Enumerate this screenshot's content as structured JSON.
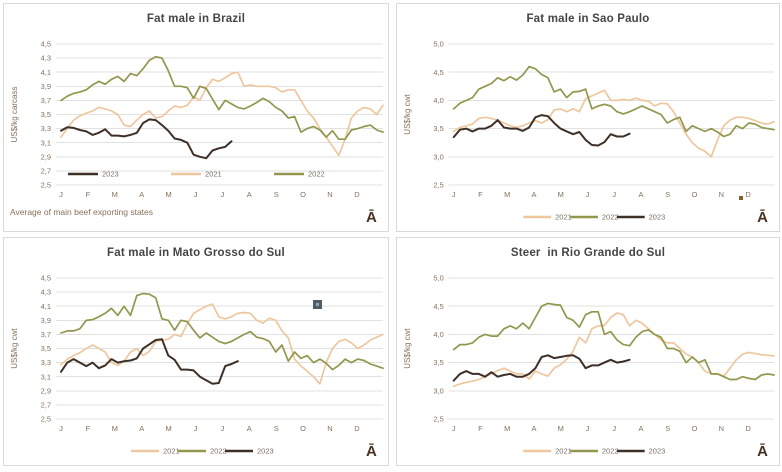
{
  "style": {
    "background": "#ffffff",
    "panel_border": "#d9d9d9",
    "grid_color": "#e1e1e1",
    "axis_text_color": "#87705a",
    "title_color": "#454545",
    "legend_text_color": "#7b6f64",
    "footnote_color": "#87705a",
    "logo_color": "#4a3120",
    "series_colors": {
      "2021": "#eec79e",
      "2022": "#91974d",
      "2023": "#3e3027"
    },
    "stray_marker_slate": {
      "outer": "#4e5d6a",
      "inner": "#98a7ae"
    },
    "stray_marker_brown": {
      "fill": "#8a5a33"
    }
  },
  "logo_glyph": "Ā",
  "chart_data": [
    {
      "type": "line",
      "title": "Fat male in Brazil",
      "ylabel": "US$/kg carcass",
      "xlabel": "",
      "ylim": [
        2.5,
        4.5
      ],
      "ytick_step": 0.2,
      "ytick_labels": [
        "2,5",
        "2,7",
        "2,9",
        "3,1",
        "3,3",
        "3,5",
        "3,7",
        "3,9",
        "4,1",
        "4,3",
        "4,5"
      ],
      "x_categories": [
        "J",
        "F",
        "M",
        "A",
        "M",
        "J",
        "J",
        "A",
        "S",
        "O",
        "N",
        "D"
      ],
      "grid": "horizontal",
      "legend_position": "inside",
      "legend_order": [
        "2023",
        "2021",
        "2022"
      ],
      "footnote": "Average of main beef exporting states",
      "series": [
        {
          "name": "2021",
          "values": [
            3.18,
            3.3,
            3.42,
            3.48,
            3.52,
            3.55,
            3.6,
            3.58,
            3.55,
            3.5,
            3.35,
            3.33,
            3.42,
            3.5,
            3.55,
            3.45,
            3.47,
            3.55,
            3.62,
            3.6,
            3.63,
            3.75,
            3.7,
            3.88,
            4.0,
            3.97,
            4.02,
            4.08,
            4.1,
            3.9,
            3.92,
            3.9,
            3.9,
            3.9,
            3.88,
            3.82,
            3.85,
            3.85,
            3.7,
            3.55,
            3.45,
            3.3,
            3.18,
            3.05,
            2.92,
            3.15,
            3.45,
            3.55,
            3.6,
            3.58,
            3.5,
            3.63
          ]
        },
        {
          "name": "2022",
          "values": [
            3.7,
            3.76,
            3.8,
            3.82,
            3.85,
            3.92,
            3.97,
            3.93,
            4.0,
            4.04,
            3.97,
            4.08,
            4.05,
            4.15,
            4.27,
            4.32,
            4.3,
            4.12,
            3.9,
            3.9,
            3.88,
            3.73,
            3.9,
            3.87,
            3.72,
            3.57,
            3.7,
            3.65,
            3.6,
            3.58,
            3.62,
            3.67,
            3.73,
            3.68,
            3.6,
            3.55,
            3.45,
            3.47,
            3.25,
            3.3,
            3.33,
            3.28,
            3.18,
            3.27,
            3.15,
            3.15,
            3.28,
            3.3,
            3.33,
            3.35,
            3.28,
            3.25
          ]
        },
        {
          "name": "2023",
          "values": [
            3.27,
            3.32,
            3.31,
            3.28,
            3.26,
            3.21,
            3.24,
            3.29,
            3.2,
            3.2,
            3.19,
            3.21,
            3.24,
            3.38,
            3.43,
            3.42,
            3.35,
            3.27,
            3.16,
            3.14,
            3.1,
            2.93,
            2.9,
            2.88,
            2.99,
            3.02,
            3.04,
            3.12
          ]
        }
      ]
    },
    {
      "type": "line",
      "title": "Fat male in Sao Paulo",
      "ylabel": "US$/kg cwt",
      "xlabel": "",
      "ylim": [
        2.5,
        5.0
      ],
      "ytick_step": 0.5,
      "ytick_labels": [
        "2,5",
        "3,0",
        "3,5",
        "4,0",
        "4,5",
        "5,0"
      ],
      "x_categories": [
        "J",
        "F",
        "M",
        "A",
        "M",
        "J",
        "J",
        "A",
        "S",
        "O",
        "N",
        "D"
      ],
      "grid": "horizontal",
      "legend_position": "below",
      "legend_order": [
        "2021",
        "2022",
        "2023"
      ],
      "footnote": "",
      "series": [
        {
          "name": "2021",
          "values": [
            3.45,
            3.52,
            3.55,
            3.58,
            3.68,
            3.7,
            3.68,
            3.65,
            3.6,
            3.55,
            3.52,
            3.55,
            3.6,
            3.64,
            3.6,
            3.66,
            3.83,
            3.85,
            3.8,
            3.85,
            3.8,
            4.03,
            4.08,
            4.13,
            4.18,
            4.0,
            4.0,
            4.02,
            4.0,
            4.04,
            4.0,
            3.99,
            3.9,
            3.95,
            3.94,
            3.8,
            3.6,
            3.4,
            3.25,
            3.15,
            3.1,
            3.0,
            3.3,
            3.55,
            3.65,
            3.7,
            3.7,
            3.68,
            3.64,
            3.6,
            3.58,
            3.62
          ]
        },
        {
          "name": "2022",
          "values": [
            3.85,
            3.95,
            4.0,
            4.05,
            4.2,
            4.25,
            4.3,
            4.4,
            4.35,
            4.42,
            4.36,
            4.45,
            4.6,
            4.56,
            4.46,
            4.4,
            4.15,
            4.2,
            4.05,
            4.15,
            4.16,
            4.2,
            3.85,
            3.9,
            3.93,
            3.9,
            3.8,
            3.76,
            3.8,
            3.85,
            3.9,
            3.85,
            3.8,
            3.75,
            3.6,
            3.66,
            3.7,
            3.45,
            3.55,
            3.5,
            3.45,
            3.5,
            3.44,
            3.36,
            3.4,
            3.55,
            3.5,
            3.6,
            3.58,
            3.52,
            3.5,
            3.48
          ]
        },
        {
          "name": "2023",
          "values": [
            3.35,
            3.48,
            3.5,
            3.45,
            3.5,
            3.5,
            3.55,
            3.65,
            3.52,
            3.5,
            3.5,
            3.46,
            3.52,
            3.7,
            3.74,
            3.72,
            3.6,
            3.5,
            3.45,
            3.4,
            3.44,
            3.3,
            3.21,
            3.2,
            3.26,
            3.4,
            3.36,
            3.36,
            3.41
          ]
        }
      ]
    },
    {
      "type": "line",
      "title": "Fat male in Mato Grosso do Sul",
      "ylabel": "US$/kg cwt",
      "xlabel": "",
      "ylim": [
        2.5,
        4.5
      ],
      "ytick_step": 0.2,
      "ytick_labels": [
        "2,5",
        "2,7",
        "2,9",
        "3,1",
        "3,3",
        "3,5",
        "3,7",
        "3,9",
        "4,1",
        "4,3",
        "4,5"
      ],
      "x_categories": [
        "J",
        "F",
        "M",
        "A",
        "M",
        "J",
        "J",
        "A",
        "S",
        "O",
        "N",
        "D"
      ],
      "grid": "horizontal",
      "legend_position": "below",
      "legend_order": [
        "2021",
        "2022",
        "2023"
      ],
      "footnote": "",
      "series": [
        {
          "name": "2021",
          "values": [
            3.27,
            3.35,
            3.4,
            3.44,
            3.5,
            3.55,
            3.5,
            3.45,
            3.3,
            3.26,
            3.32,
            3.45,
            3.5,
            3.4,
            3.46,
            3.6,
            3.62,
            3.63,
            3.7,
            3.67,
            3.85,
            4.0,
            4.05,
            4.1,
            4.13,
            3.95,
            3.92,
            3.95,
            4.0,
            4.01,
            4.0,
            3.9,
            3.86,
            3.93,
            3.9,
            3.75,
            3.65,
            3.35,
            3.25,
            3.18,
            3.1,
            3.0,
            3.3,
            3.5,
            3.6,
            3.63,
            3.58,
            3.5,
            3.55,
            3.62,
            3.66,
            3.7
          ]
        },
        {
          "name": "2022",
          "values": [
            3.72,
            3.75,
            3.75,
            3.78,
            3.9,
            3.91,
            3.95,
            4.0,
            4.07,
            3.97,
            4.1,
            3.97,
            4.25,
            4.28,
            4.27,
            4.22,
            3.92,
            3.9,
            3.76,
            3.9,
            3.88,
            3.76,
            3.65,
            3.72,
            3.66,
            3.6,
            3.57,
            3.6,
            3.65,
            3.7,
            3.74,
            3.66,
            3.64,
            3.6,
            3.45,
            3.55,
            3.32,
            3.45,
            3.36,
            3.4,
            3.3,
            3.35,
            3.29,
            3.2,
            3.26,
            3.35,
            3.3,
            3.35,
            3.33,
            3.28,
            3.25,
            3.22
          ]
        },
        {
          "name": "2023",
          "values": [
            3.17,
            3.3,
            3.35,
            3.3,
            3.25,
            3.3,
            3.22,
            3.26,
            3.35,
            3.3,
            3.32,
            3.33,
            3.36,
            3.5,
            3.56,
            3.62,
            3.63,
            3.4,
            3.34,
            3.2,
            3.2,
            3.19,
            3.1,
            3.05,
            3.0,
            3.01,
            3.25,
            3.28,
            3.32
          ]
        }
      ]
    },
    {
      "type": "line",
      "title": "Steer  in Rio Grande do Sul",
      "ylabel": "US$/kg cwt",
      "xlabel": "",
      "ylim": [
        2.5,
        5.0
      ],
      "ytick_step": 0.5,
      "ytick_labels": [
        "2,5",
        "3,0",
        "3,5",
        "4,0",
        "4,5",
        "5,0"
      ],
      "x_categories": [
        "J",
        "F",
        "M",
        "A",
        "M",
        "J",
        "J",
        "A",
        "S",
        "O",
        "N",
        "D"
      ],
      "grid": "horizontal",
      "legend_position": "below",
      "legend_order": [
        "2021",
        "2022",
        "2023"
      ],
      "footnote": "",
      "series": [
        {
          "name": "2021",
          "values": [
            3.08,
            3.12,
            3.15,
            3.17,
            3.2,
            3.25,
            3.3,
            3.36,
            3.4,
            3.35,
            3.3,
            3.3,
            3.21,
            3.35,
            3.3,
            3.26,
            3.4,
            3.46,
            3.56,
            3.7,
            3.95,
            3.85,
            4.1,
            4.15,
            4.16,
            4.3,
            4.38,
            4.35,
            4.15,
            4.25,
            4.2,
            4.1,
            4.0,
            3.9,
            3.85,
            3.85,
            3.75,
            3.65,
            3.6,
            3.5,
            3.35,
            3.3,
            3.3,
            3.26,
            3.4,
            3.55,
            3.65,
            3.68,
            3.66,
            3.64,
            3.63,
            3.62
          ]
        },
        {
          "name": "2022",
          "values": [
            3.73,
            3.82,
            3.82,
            3.85,
            3.95,
            4.0,
            3.97,
            3.97,
            4.1,
            4.15,
            4.1,
            4.2,
            4.1,
            4.3,
            4.5,
            4.55,
            4.53,
            4.52,
            4.3,
            4.25,
            4.13,
            4.35,
            4.4,
            4.4,
            4.0,
            4.05,
            3.9,
            3.82,
            3.8,
            3.95,
            4.05,
            4.08,
            4.0,
            3.95,
            3.75,
            3.75,
            3.7,
            3.5,
            3.6,
            3.5,
            3.55,
            3.3,
            3.3,
            3.25,
            3.2,
            3.2,
            3.25,
            3.22,
            3.2,
            3.28,
            3.3,
            3.28
          ]
        },
        {
          "name": "2023",
          "values": [
            3.18,
            3.3,
            3.35,
            3.3,
            3.3,
            3.25,
            3.33,
            3.25,
            3.28,
            3.3,
            3.25,
            3.25,
            3.3,
            3.4,
            3.6,
            3.63,
            3.58,
            3.6,
            3.62,
            3.63,
            3.57,
            3.4,
            3.45,
            3.45,
            3.5,
            3.55,
            3.5,
            3.52,
            3.55
          ]
        }
      ]
    }
  ]
}
